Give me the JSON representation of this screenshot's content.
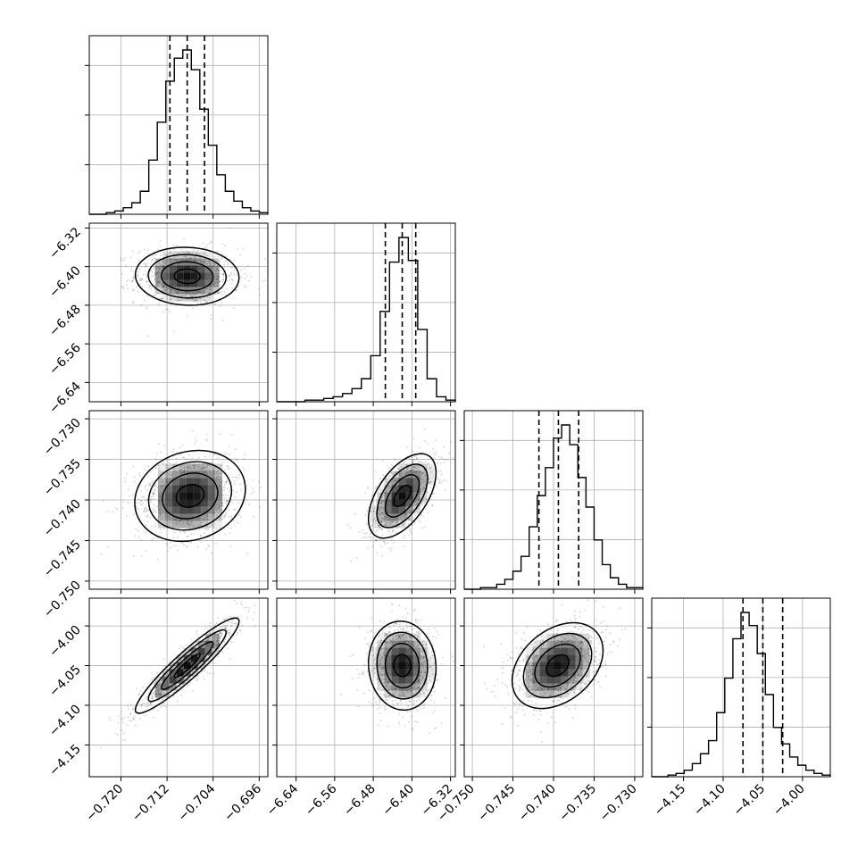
{
  "chart_data": {
    "type": "corner",
    "title": "",
    "parameters": [
      {
        "index": 0,
        "label": "",
        "axis_range": [
          -0.7255,
          -0.6945
        ],
        "ticks": [
          "−0.720",
          "−0.712",
          "−0.704",
          "−0.696"
        ],
        "tick_values": [
          -0.72,
          -0.712,
          -0.704,
          -0.696
        ],
        "quantiles": [
          -0.7115,
          -0.7085,
          -0.7055
        ],
        "histogram": [
          0,
          0,
          1,
          2,
          4,
          7,
          14,
          33,
          56,
          81,
          95,
          100,
          88,
          64,
          42,
          24,
          14,
          8,
          4,
          2,
          1
        ]
      },
      {
        "index": 1,
        "label": "",
        "axis_range": [
          -6.68,
          -6.31
        ],
        "ticks": [
          "−6.64",
          "−6.56",
          "−6.48",
          "−6.40",
          "−6.32"
        ],
        "tick_values": [
          -6.64,
          -6.56,
          -6.48,
          -6.4,
          -6.32
        ],
        "quantiles": [
          -6.455,
          -6.42,
          -6.392
        ],
        "histogram": [
          0,
          0,
          0,
          1,
          1,
          2,
          3,
          5,
          8,
          14,
          28,
          55,
          85,
          100,
          86,
          44,
          14,
          3,
          1
        ]
      },
      {
        "index": 2,
        "label": "",
        "axis_range": [
          -0.751,
          -0.729
        ],
        "ticks": [
          "−0.750",
          "−0.745",
          "−0.740",
          "−0.735",
          "−0.730"
        ],
        "tick_values": [
          -0.75,
          -0.745,
          -0.74,
          -0.735,
          -0.73
        ],
        "quantiles": [
          -0.7418,
          -0.7394,
          -0.7369
        ],
        "histogram": [
          0,
          0,
          1,
          1,
          3,
          6,
          11,
          20,
          38,
          57,
          74,
          92,
          100,
          88,
          68,
          50,
          30,
          15,
          7,
          3,
          1,
          1
        ]
      },
      {
        "index": 3,
        "label": "",
        "axis_range": [
          -4.19,
          -3.965
        ],
        "ticks": [
          "−4.15",
          "−4.10",
          "−4.05",
          "−4.00"
        ],
        "tick_values": [
          -4.15,
          -4.1,
          -4.05,
          -4.0
        ],
        "quantiles": [
          -4.075,
          -4.05,
          -4.025
        ],
        "histogram": [
          0,
          0,
          1,
          2,
          4,
          8,
          14,
          22,
          39,
          60,
          84,
          100,
          92,
          75,
          50,
          30,
          20,
          12,
          7,
          4,
          2,
          1
        ]
      }
    ],
    "pairs": [
      {
        "x": 0,
        "y": 1,
        "mean": [
          -0.7085,
          -6.42
        ],
        "sd": [
          0.0045,
          0.03
        ],
        "corr": -0.05
      },
      {
        "x": 0,
        "y": 2,
        "mean": [
          -0.708,
          -0.7395
        ],
        "sd": [
          0.0048,
          0.0028
        ],
        "corr": 0.15
      },
      {
        "x": 1,
        "y": 2,
        "mean": [
          -6.42,
          -0.7395
        ],
        "sd": [
          0.035,
          0.0026
        ],
        "corr": 0.55
      },
      {
        "x": 0,
        "y": 3,
        "mean": [
          -0.7085,
          -4.05
        ],
        "sd": [
          0.0045,
          0.03
        ],
        "corr": 0.93
      },
      {
        "x": 1,
        "y": 3,
        "mean": [
          -6.42,
          -4.05
        ],
        "sd": [
          0.035,
          0.028
        ],
        "corr": -0.05
      },
      {
        "x": 2,
        "y": 3,
        "mean": [
          -0.7395,
          -4.05
        ],
        "sd": [
          0.0028,
          0.027
        ],
        "corr": 0.35
      }
    ],
    "colors": {
      "axes": "#000000",
      "grid": "#b0b0b0",
      "contour": "#000000",
      "density": "#000000"
    }
  }
}
